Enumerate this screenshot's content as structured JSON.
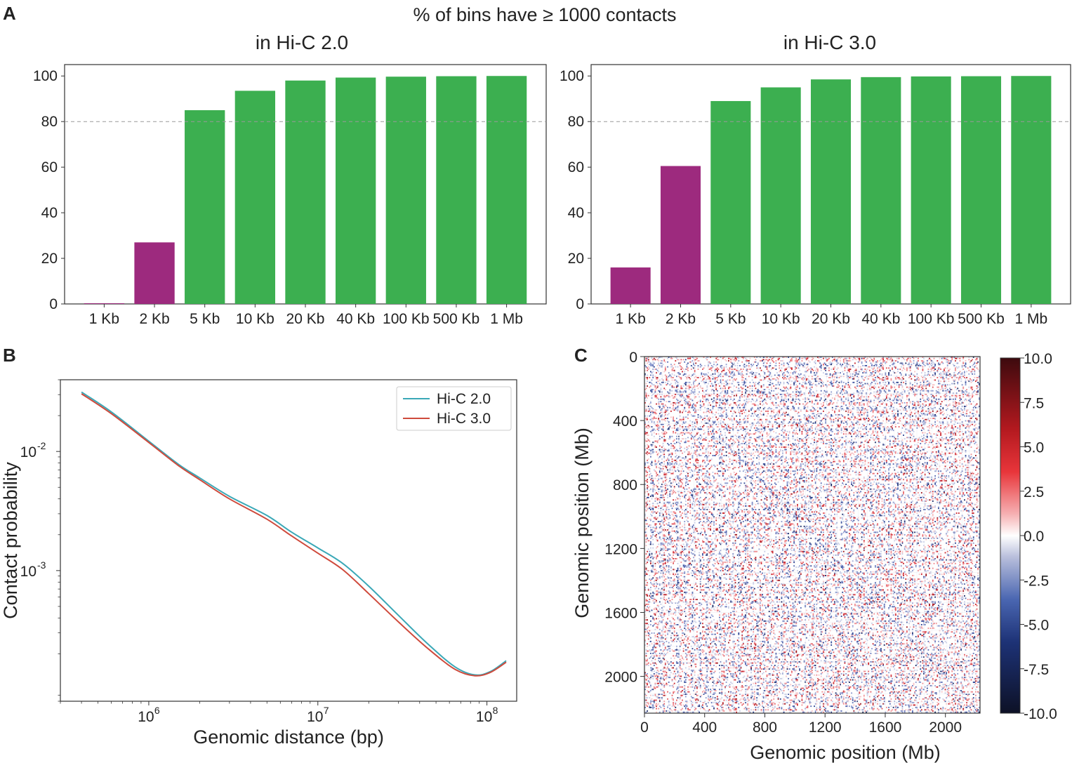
{
  "panels": {
    "a": {
      "letter": "A"
    },
    "b": {
      "letter": "B"
    },
    "c": {
      "letter": "C"
    }
  },
  "colors": {
    "green": "#3caf50",
    "purple": "#9d2a7e",
    "hic2": "#3aa8b7",
    "hic3": "#cf4a3c",
    "threshold": "#999999",
    "axis": "#333333"
  },
  "chart_data": [
    {
      "type": "bar",
      "suptitle": "% of bins have ≥ 1000 contacts",
      "title": "in Hi-C 2.0",
      "categories": [
        "1 Kb",
        "2 Kb",
        "5 Kb",
        "10 Kb",
        "20 Kb",
        "40 Kb",
        "100 Kb",
        "500 Kb",
        "1 Mb"
      ],
      "values": [
        0.3,
        27,
        85,
        93.5,
        98,
        99.3,
        99.7,
        99.9,
        100
      ],
      "threshold": 80,
      "ylim": [
        0,
        105
      ],
      "yticks": [
        "0",
        "20",
        "40",
        "60",
        "80",
        "100"
      ],
      "xlabel": "",
      "ylabel": ""
    },
    {
      "type": "bar",
      "title": "in Hi-C 3.0",
      "categories": [
        "1 Kb",
        "2 Kb",
        "5 Kb",
        "10 Kb",
        "20 Kb",
        "40 Kb",
        "100 Kb",
        "500 Kb",
        "1 Mb"
      ],
      "values": [
        16,
        60.5,
        89,
        95,
        98.5,
        99.5,
        99.8,
        99.9,
        100
      ],
      "threshold": 80,
      "ylim": [
        0,
        105
      ],
      "yticks": [
        "0",
        "20",
        "40",
        "60",
        "80",
        "100"
      ],
      "xlabel": "",
      "ylabel": ""
    },
    {
      "type": "line",
      "xscale": "log",
      "yscale": "log",
      "xlabel": "Genomic distance (bp)",
      "ylabel": "Contact probability",
      "xlim": [
        300000,
        150000000
      ],
      "ylim": [
        8e-05,
        0.04
      ],
      "xticks": [
        {
          "base": "10",
          "exp": "6"
        },
        {
          "base": "10",
          "exp": "7"
        },
        {
          "base": "10",
          "exp": "8"
        }
      ],
      "yticks": [
        {
          "base": "10",
          "exp": "-2"
        },
        {
          "base": "10",
          "exp": "-3"
        }
      ],
      "legend_position": "top-right",
      "series": [
        {
          "name": "Hi-C 2.0",
          "x": [
            400000,
            600000,
            1000000,
            1500000,
            2000000,
            3000000,
            5000000,
            7000000,
            10000000,
            14000000,
            20000000,
            30000000,
            45000000,
            65000000,
            85000000,
            105000000,
            130000000
          ],
          "y": [
            0.0315,
            0.0215,
            0.0122,
            0.0078,
            0.006,
            0.0042,
            0.0029,
            0.0021,
            0.00155,
            0.00115,
            0.00074,
            0.00042,
            0.00024,
            0.000155,
            0.000133,
            0.000142,
            0.000175
          ]
        },
        {
          "name": "Hi-C 3.0",
          "x": [
            400000,
            600000,
            1000000,
            1500000,
            2000000,
            3000000,
            5000000,
            7000000,
            10000000,
            14000000,
            20000000,
            30000000,
            45000000,
            65000000,
            85000000,
            105000000,
            130000000
          ],
          "y": [
            0.0305,
            0.0208,
            0.0119,
            0.0076,
            0.0058,
            0.004,
            0.0027,
            0.00195,
            0.0014,
            0.00102,
            0.00064,
            0.00037,
            0.00022,
            0.000148,
            0.000131,
            0.00014,
            0.00017
          ]
        }
      ]
    },
    {
      "type": "heatmap",
      "xlabel": "Genomic position (Mb)",
      "ylabel": "Genomic position (Mb)",
      "xticks": [
        "0",
        "400",
        "800",
        "1200",
        "1600",
        "2000"
      ],
      "yticks": [
        "0",
        "400",
        "800",
        "1200",
        "1600",
        "2000"
      ],
      "tick_values": [
        0,
        400,
        800,
        1200,
        1600,
        2000
      ],
      "extent": [
        0,
        2230
      ],
      "colorbar_range": [
        -10,
        10
      ],
      "colorbar_ticks": [
        "10.0",
        "7.5",
        "5.0",
        "2.5",
        "0.0",
        "-2.5",
        "-5.0",
        "-7.5",
        "-10.0"
      ],
      "colorbar_values": [
        10,
        7.5,
        5,
        2.5,
        0,
        -2.5,
        -5,
        -7.5,
        -10
      ],
      "colormap": "seismic"
    }
  ]
}
